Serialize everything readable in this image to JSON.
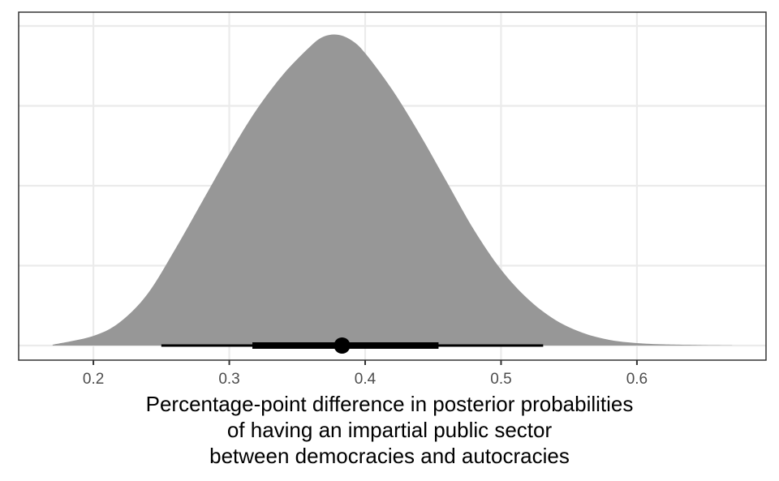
{
  "chart_data": {
    "type": "area",
    "title": "",
    "xlabel_lines": [
      "Percentage-point difference in posterior probabilities",
      "of having an impartial public sector",
      "between democracies and autocracies"
    ],
    "ylabel": "",
    "xlim": [
      0.145,
      0.695
    ],
    "ylim": [
      0,
      4.15
    ],
    "x_ticks": [
      0.2,
      0.3,
      0.4,
      0.5,
      0.6
    ],
    "x_tick_labels": [
      "0.2",
      "0.3",
      "0.4",
      "0.5",
      "0.6"
    ],
    "y_gridlines": [
      0,
      1,
      2,
      3,
      4
    ],
    "y_tick_labels_shown": false,
    "grid": true,
    "legend": "none",
    "density": {
      "x": [
        0.17,
        0.2,
        0.22,
        0.24,
        0.26,
        0.28,
        0.3,
        0.32,
        0.34,
        0.36,
        0.37,
        0.38,
        0.39,
        0.4,
        0.42,
        0.44,
        0.46,
        0.48,
        0.5,
        0.52,
        0.54,
        0.56,
        0.58,
        0.6,
        0.62,
        0.65,
        0.67
      ],
      "y": [
        0.01,
        0.12,
        0.3,
        0.65,
        1.2,
        1.8,
        2.4,
        2.95,
        3.4,
        3.75,
        3.87,
        3.89,
        3.82,
        3.66,
        3.2,
        2.65,
        2.05,
        1.45,
        0.95,
        0.58,
        0.32,
        0.16,
        0.07,
        0.03,
        0.015,
        0.005,
        0.002
      ]
    },
    "point_estimate": 0.383,
    "interval_66": [
      0.317,
      0.454
    ],
    "interval_95": [
      0.25,
      0.531
    ],
    "colors": {
      "fill": "#979797",
      "interval": "#000000",
      "grid": "#ebebeb",
      "panel_border": "#333333",
      "tick_text": "#4d4d4d"
    }
  }
}
